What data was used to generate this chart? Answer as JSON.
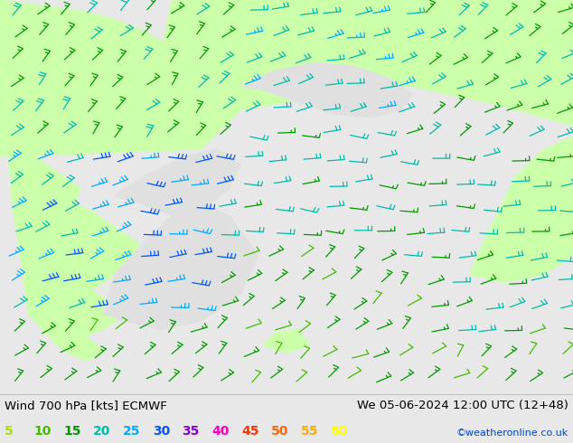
{
  "title_left": "Wind 700 hPa [kts] ECMWF",
  "title_right": "We 05-06-2024 12:00 UTC (12+48)",
  "credit": "©weatheronline.co.uk",
  "legend_values": [
    "5",
    "10",
    "15",
    "20",
    "25",
    "30",
    "35",
    "40",
    "45",
    "50",
    "55",
    "60"
  ],
  "legend_colors": [
    "#aadd00",
    "#44bb00",
    "#009900",
    "#00bbaa",
    "#00aaff",
    "#0055ff",
    "#8800cc",
    "#ff00bb",
    "#ff3300",
    "#ff6600",
    "#ffaa00",
    "#ffff00"
  ],
  "bg_color": "#e8e8e8",
  "land_color": "#ccffaa",
  "sea_color": "#e0e0e0",
  "border_color": "#999999",
  "title_fontsize": 9.5,
  "legend_fontsize": 10,
  "fig_width": 6.34,
  "fig_height": 4.9,
  "dpi": 100,
  "speed_colors": {
    "5": "#aadd00",
    "10": "#44bb00",
    "15": "#009900",
    "20": "#00bbaa",
    "25": "#00aaff",
    "30": "#0055ff",
    "35": "#8800cc",
    "40": "#ff00bb",
    "45": "#ff3300",
    "50": "#ff6600",
    "55": "#ffaa00",
    "60": "#ffff00"
  }
}
